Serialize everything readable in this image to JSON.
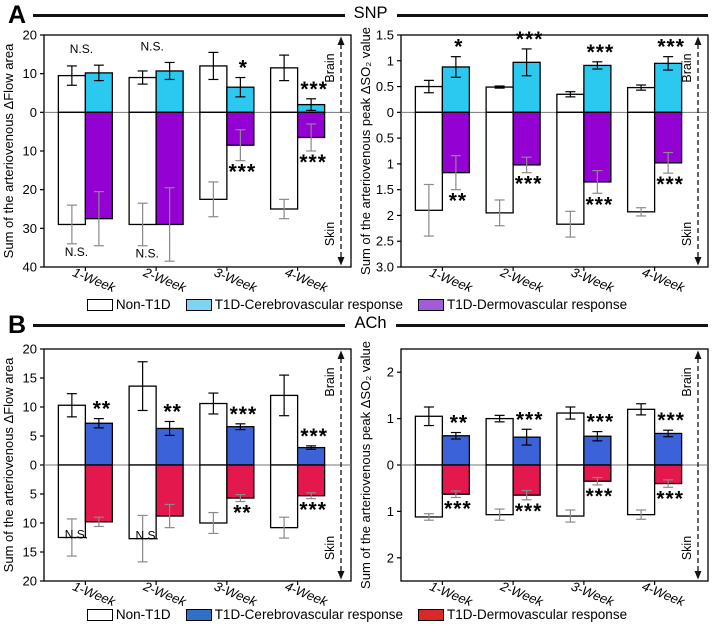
{
  "figure": {
    "panels": [
      {
        "label": "A",
        "title": "SNP"
      },
      {
        "label": "B",
        "title": "ACh"
      }
    ],
    "legends": [
      {
        "items": [
          {
            "label": "Non-T1D",
            "fill": "#FFFFFF"
          },
          {
            "label": "T1D-Cerebrovascular response",
            "fill": "#7FD4F1"
          },
          {
            "label": "T1D-Dermovascular response",
            "fill": "#A15DD8"
          }
        ]
      },
      {
        "items": [
          {
            "label": "Non-T1D",
            "fill": "#FFFFFF"
          },
          {
            "label": "T1D-Cerebrovascular response",
            "fill": "#2E71C7"
          },
          {
            "label": "T1D-Dermovascular response",
            "fill": "#D8282C"
          }
        ]
      }
    ]
  },
  "chart_data": [
    {
      "id": "a-left",
      "type": "bar",
      "panel": "A",
      "stimulus": "SNP",
      "ylabel": "Sum of the arteriovenous ΔFlow area",
      "ylim": [
        -40,
        20
      ],
      "ytick_values": [
        20,
        10,
        0,
        -10,
        -20,
        -30,
        -40
      ],
      "ytick_labels": [
        "20",
        "10",
        "0",
        "10",
        "20",
        "30",
        "40"
      ],
      "categories": [
        "1-Week",
        "2-Week",
        "3-Week",
        "4-Week"
      ],
      "series": [
        {
          "name": "Non-T1D",
          "direction": "up",
          "color": "#FFFFFF",
          "values": [
            9.5,
            9.0,
            12.0,
            11.5
          ],
          "errors": [
            2.5,
            1.7,
            3.5,
            3.3
          ]
        },
        {
          "name": "T1D-Cerebrovascular response",
          "direction": "up",
          "color": "#2BC9EF",
          "values": [
            10.2,
            10.7,
            6.5,
            2.0
          ],
          "errors": [
            2.0,
            2.2,
            2.5,
            1.5
          ]
        },
        {
          "name": "Non-T1D",
          "direction": "down",
          "color": "#FFFFFF",
          "values": [
            29,
            29,
            22.5,
            25
          ],
          "errors": [
            5,
            5.5,
            4.5,
            2.5
          ]
        },
        {
          "name": "T1D-Dermovascular response",
          "direction": "down",
          "color": "#9401D3",
          "values": [
            27.5,
            29,
            8.5,
            6.5
          ],
          "errors": [
            7,
            9.5,
            4,
            3.5
          ]
        }
      ],
      "significance_top": [
        "N.S.",
        "N.S.",
        "*",
        "***"
      ],
      "significance_bottom": [
        "N.S.",
        "N.S.",
        "***",
        "***"
      ],
      "right_annotation": {
        "top": "Brain",
        "bottom": "Skin"
      }
    },
    {
      "id": "a-right",
      "type": "bar",
      "panel": "A",
      "stimulus": "SNP",
      "ylabel": "Sum of the arteriovenous peak ΔSO₂  value",
      "ylim": [
        -3,
        1.5
      ],
      "ytick_values": [
        1.5,
        1,
        0.5,
        0,
        -0.5,
        -1,
        -1.5,
        -2,
        -2.5,
        -3
      ],
      "ytick_labels": [
        "1.5",
        "1",
        "0.5",
        "0",
        "0.5",
        "1",
        "1.5",
        "2",
        "2.5",
        "3.0"
      ],
      "categories": [
        "1-Week",
        "2-Week",
        "3-Week",
        "4-Week"
      ],
      "series": [
        {
          "name": "Non-T1D",
          "direction": "up",
          "color": "#FFFFFF",
          "values": [
            0.5,
            0.49,
            0.35,
            0.48
          ],
          "errors": [
            0.12,
            0.02,
            0.05,
            0.05
          ]
        },
        {
          "name": "T1D-Cerebrovascular response",
          "direction": "up",
          "color": "#2BC9EF",
          "values": [
            0.88,
            0.97,
            0.91,
            0.95
          ],
          "errors": [
            0.2,
            0.26,
            0.07,
            0.13
          ]
        },
        {
          "name": "Non-T1D",
          "direction": "down",
          "color": "#FFFFFF",
          "values": [
            1.9,
            1.95,
            2.17,
            1.93
          ],
          "errors": [
            0.5,
            0.25,
            0.25,
            0.08
          ]
        },
        {
          "name": "T1D-Dermovascular response",
          "direction": "down",
          "color": "#9401D3",
          "values": [
            1.17,
            1.02,
            1.35,
            0.98
          ],
          "errors": [
            0.33,
            0.15,
            0.22,
            0.2
          ]
        }
      ],
      "significance_top": [
        "*",
        "***",
        "***",
        "***"
      ],
      "significance_bottom": [
        "**",
        "***",
        "***",
        "***"
      ],
      "right_annotation": {
        "top": "Brain",
        "bottom": "Skin"
      }
    },
    {
      "id": "b-left",
      "type": "bar",
      "panel": "B",
      "stimulus": "ACh",
      "ylabel": "Sum of the arteriovenous ΔFlow area",
      "ylim": [
        -20,
        20
      ],
      "ytick_values": [
        20,
        15,
        10,
        5,
        0,
        -5,
        -10,
        -15,
        -20
      ],
      "ytick_labels": [
        "20",
        "15",
        "10",
        "5",
        "0",
        "5",
        "10",
        "15",
        "20"
      ],
      "categories": [
        "1-Week",
        "2-Week",
        "3-Week",
        "4-Week"
      ],
      "series": [
        {
          "name": "Non-T1D",
          "direction": "up",
          "color": "#FFFFFF",
          "values": [
            10.3,
            13.6,
            10.6,
            12.0
          ],
          "errors": [
            2.0,
            4.2,
            1.8,
            3.5
          ]
        },
        {
          "name": "T1D-Cerebrovascular response",
          "direction": "up",
          "color": "#3B62D8",
          "values": [
            7.2,
            6.3,
            6.6,
            3.0
          ],
          "errors": [
            0.8,
            1.2,
            0.5,
            0.3
          ]
        },
        {
          "name": "Non-T1D",
          "direction": "down",
          "color": "#FFFFFF",
          "values": [
            12.5,
            12.7,
            10.0,
            10.8
          ],
          "errors": [
            3.2,
            4.0,
            1.8,
            1.8
          ]
        },
        {
          "name": "T1D-Dermovascular response",
          "direction": "down",
          "color": "#E3184C",
          "values": [
            9.8,
            8.8,
            5.7,
            5.3
          ],
          "errors": [
            0.8,
            2.0,
            0.6,
            0.5
          ]
        }
      ],
      "significance_top": [
        "**",
        "**",
        "***",
        "***"
      ],
      "significance_bottom": [
        "N.S.",
        "N.S.",
        "**",
        "***"
      ],
      "right_annotation": {
        "top": "Brain",
        "bottom": "Skin"
      }
    },
    {
      "id": "b-right",
      "type": "bar",
      "panel": "B",
      "stimulus": "ACh",
      "ylabel": "Sum of the arteriovenous peak ΔSO₂  value",
      "ylim": [
        -2.5,
        2.5
      ],
      "ytick_values": [
        2,
        1,
        0,
        -1,
        -2
      ],
      "ytick_labels": [
        "2",
        "1",
        "0",
        "1",
        "2"
      ],
      "categories": [
        "1-Week",
        "2-Week",
        "3-Week",
        "4-Week"
      ],
      "series": [
        {
          "name": "Non-T1D",
          "direction": "up",
          "color": "#FFFFFF",
          "values": [
            1.05,
            1.0,
            1.12,
            1.2
          ],
          "errors": [
            0.2,
            0.07,
            0.13,
            0.12
          ]
        },
        {
          "name": "T1D-Cerebrovascular response",
          "direction": "up",
          "color": "#3B62D8",
          "values": [
            0.63,
            0.6,
            0.62,
            0.68
          ],
          "errors": [
            0.07,
            0.17,
            0.1,
            0.07
          ]
        },
        {
          "name": "Non-T1D",
          "direction": "down",
          "color": "#FFFFFF",
          "values": [
            1.12,
            1.07,
            1.1,
            1.07
          ],
          "errors": [
            0.07,
            0.12,
            0.13,
            0.1
          ]
        },
        {
          "name": "T1D-Dermovascular response",
          "direction": "down",
          "color": "#E3184C",
          "values": [
            0.63,
            0.65,
            0.35,
            0.4
          ],
          "errors": [
            0.07,
            0.1,
            0.08,
            0.08
          ]
        }
      ],
      "significance_top": [
        "**",
        "***",
        "***",
        "***"
      ],
      "significance_bottom": [
        "***",
        "***",
        "***",
        "***"
      ],
      "right_annotation": {
        "top": "Brain",
        "bottom": "Skin"
      }
    }
  ]
}
